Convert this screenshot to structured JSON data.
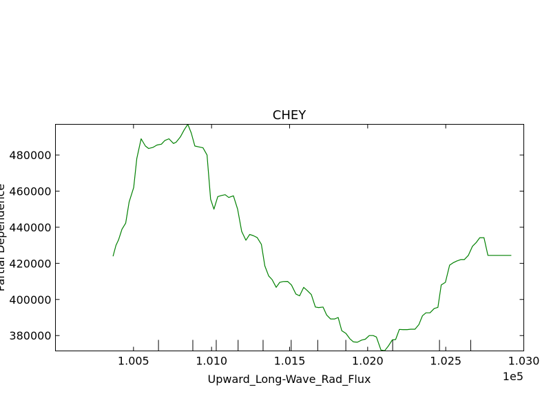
{
  "chart_data": {
    "type": "line",
    "title": "CHEY",
    "xlabel": "Upward_Long-Wave_Rad_Flux",
    "ylabel": "Partial Dependence",
    "x_offset_label": "1e5",
    "xlim": [
      1.0,
      1.03
    ],
    "ylim": [
      371500,
      497000
    ],
    "x_ticks": [
      "1.005",
      "1.010",
      "1.015",
      "1.020",
      "1.025",
      "1.030"
    ],
    "x_tick_values": [
      1.005,
      1.01,
      1.015,
      1.02,
      1.025,
      1.03
    ],
    "y_ticks": [
      "380000",
      "400000",
      "420000",
      "440000",
      "460000",
      "480000"
    ],
    "y_tick_values": [
      380000,
      400000,
      420000,
      440000,
      460000,
      480000
    ],
    "rug_x": [
      1.0066,
      1.0088,
      1.0103,
      1.0117,
      1.0133,
      1.0151,
      1.0168,
      1.0186,
      1.0216,
      1.0246,
      1.0266
    ],
    "series": [
      {
        "color": "#008000",
        "x": [
          1.00369,
          1.00388,
          1.00404,
          1.00426,
          1.0045,
          1.00472,
          1.00501,
          1.00521,
          1.00549,
          1.00576,
          1.00597,
          1.00624,
          1.0065,
          1.00679,
          1.007,
          1.00727,
          1.00756,
          1.00773,
          1.008,
          1.00826,
          1.00848,
          1.0087,
          1.00893,
          1.00919,
          1.00945,
          1.00971,
          1.00994,
          1.01015,
          1.0104,
          1.01064,
          1.01087,
          1.0111,
          1.0114,
          1.01167,
          1.01193,
          1.0122,
          1.01244,
          1.01266,
          1.01292,
          1.01319,
          1.01341,
          1.01366,
          1.01388,
          1.01414,
          1.01437,
          1.01458,
          1.01487,
          1.01512,
          1.0154,
          1.01564,
          1.0159,
          1.01612,
          1.01639,
          1.01665,
          1.01686,
          1.01714,
          1.01737,
          1.01762,
          1.01789,
          1.01811,
          1.01834,
          1.01861,
          1.01886,
          1.01909,
          1.01934,
          1.01961,
          1.01985,
          1.0201,
          1.02035,
          1.02056,
          1.02085,
          1.02109,
          1.02131,
          1.02158,
          1.02179,
          1.02203,
          1.02226,
          1.02253,
          1.02276,
          1.02303,
          1.02328,
          1.02351,
          1.02373,
          1.02399,
          1.02426,
          1.0245,
          1.02471,
          1.02498,
          1.02525,
          1.02547,
          1.02571,
          1.02596,
          1.02619,
          1.02645,
          1.02671,
          1.02696,
          1.02718,
          1.02745,
          1.0277,
          1.02792,
          1.02818,
          1.02842,
          1.02868,
          1.02895,
          1.0292
        ],
        "y": [
          423900,
          430000,
          433000,
          438900,
          442300,
          454000,
          462000,
          478000,
          489000,
          485000,
          483600,
          484200,
          485500,
          486000,
          488000,
          489000,
          486400,
          487100,
          490000,
          494100,
          497000,
          492200,
          485000,
          484500,
          484000,
          480000,
          455500,
          450000,
          457000,
          457600,
          458000,
          456500,
          457400,
          450000,
          437700,
          432800,
          436000,
          435400,
          434300,
          430500,
          418600,
          413000,
          411000,
          406700,
          409500,
          409900,
          410000,
          408000,
          403000,
          402000,
          406700,
          405000,
          402700,
          395800,
          395500,
          395800,
          391400,
          389200,
          389200,
          390000,
          382700,
          381200,
          378200,
          376500,
          376300,
          377500,
          378000,
          380000,
          380000,
          379200,
          372000,
          371600,
          374000,
          377600,
          377800,
          383400,
          383300,
          383300,
          383500,
          383500,
          386100,
          391000,
          392600,
          392600,
          395000,
          395600,
          408000,
          409500,
          419000,
          420300,
          421300,
          422100,
          422100,
          424400,
          429400,
          431600,
          434200,
          434200,
          424400,
          424400,
          424400,
          424400,
          424400,
          424400,
          424400
        ]
      }
    ]
  }
}
